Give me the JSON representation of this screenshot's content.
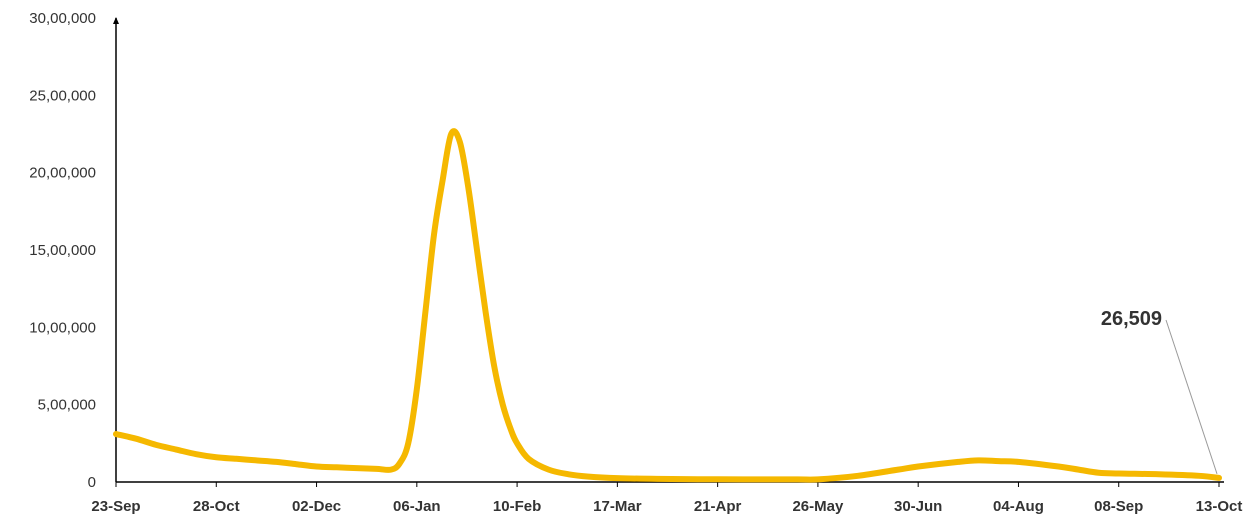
{
  "chart_data": {
    "type": "line",
    "title": "",
    "xlabel": "",
    "ylabel": "",
    "x_ticks": [
      "23-Sep",
      "28-Oct",
      "02-Dec",
      "06-Jan",
      "10-Feb",
      "17-Mar",
      "21-Apr",
      "26-May",
      "30-Jun",
      "04-Aug",
      "08-Sep",
      "13-Oct"
    ],
    "y_ticks": [
      "0",
      "5,00,000",
      "10,00,000",
      "15,00,000",
      "20,00,000",
      "25,00,000",
      "30,00,000"
    ],
    "ylim": [
      0,
      3000000
    ],
    "xlim": [
      "23-Sep",
      "13-Oct"
    ],
    "grid": false,
    "legend": "none",
    "series": [
      {
        "color": "#F5B800",
        "points": [
          [
            "23-Sep",
            310000
          ],
          [
            "30-Sep",
            280000
          ],
          [
            "07-Oct",
            240000
          ],
          [
            "14-Oct",
            210000
          ],
          [
            "21-Oct",
            180000
          ],
          [
            "28-Oct",
            160000
          ],
          [
            "04-Nov",
            150000
          ],
          [
            "11-Nov",
            140000
          ],
          [
            "18-Nov",
            130000
          ],
          [
            "25-Nov",
            115000
          ],
          [
            "02-Dec",
            100000
          ],
          [
            "09-Dec",
            95000
          ],
          [
            "16-Dec",
            90000
          ],
          [
            "23-Dec",
            85000
          ],
          [
            "28-Dec",
            80000
          ],
          [
            "31-Dec",
            120000
          ],
          [
            "03-Jan",
            250000
          ],
          [
            "06-Jan",
            600000
          ],
          [
            "09-Jan",
            1100000
          ],
          [
            "12-Jan",
            1600000
          ],
          [
            "15-Jan",
            1950000
          ],
          [
            "18-Jan",
            2250000
          ],
          [
            "21-Jan",
            2200000
          ],
          [
            "24-Jan",
            1900000
          ],
          [
            "27-Jan",
            1500000
          ],
          [
            "30-Jan",
            1100000
          ],
          [
            "02-Feb",
            750000
          ],
          [
            "05-Feb",
            500000
          ],
          [
            "08-Feb",
            330000
          ],
          [
            "10-Feb",
            250000
          ],
          [
            "14-Feb",
            150000
          ],
          [
            "21-Feb",
            80000
          ],
          [
            "28-Feb",
            50000
          ],
          [
            "07-Mar",
            35000
          ],
          [
            "17-Mar",
            25000
          ],
          [
            "31-Mar",
            20000
          ],
          [
            "14-Apr",
            18000
          ],
          [
            "21-Apr",
            18000
          ],
          [
            "05-May",
            17000
          ],
          [
            "19-May",
            17000
          ],
          [
            "26-May",
            17000
          ],
          [
            "09-Jun",
            40000
          ],
          [
            "23-Jun",
            80000
          ],
          [
            "30-Jun",
            100000
          ],
          [
            "14-Jul",
            130000
          ],
          [
            "21-Jul",
            140000
          ],
          [
            "28-Jul",
            135000
          ],
          [
            "04-Aug",
            130000
          ],
          [
            "18-Aug",
            100000
          ],
          [
            "25-Aug",
            80000
          ],
          [
            "01-Sep",
            60000
          ],
          [
            "08-Sep",
            55000
          ],
          [
            "22-Sep",
            50000
          ],
          [
            "06-Oct",
            40000
          ],
          [
            "13-Oct",
            26509
          ]
        ]
      }
    ],
    "annotations": [
      {
        "text": "26,509",
        "at_x": "13-Oct",
        "at_y": 26509
      }
    ]
  }
}
